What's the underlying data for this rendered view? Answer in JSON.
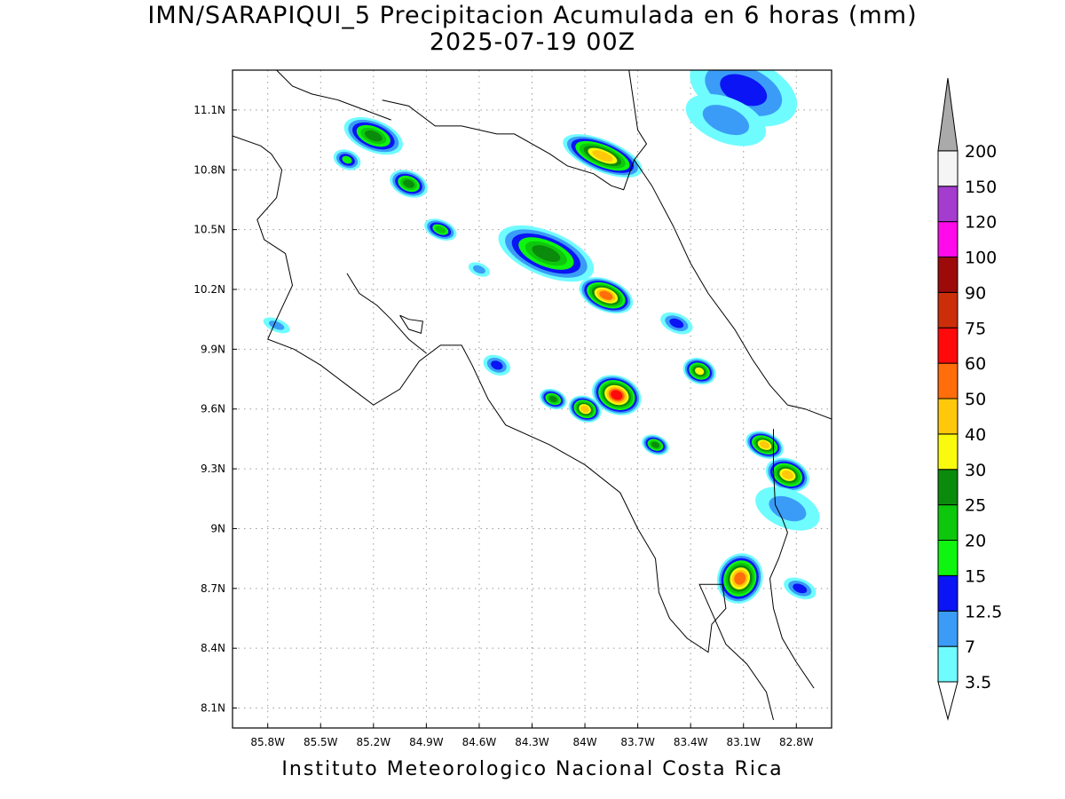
{
  "title": {
    "line1": "IMN/SARAPIQUI_5 Precipitacion Acumulada en 6 horas (mm)",
    "line2": "2025-07-19 00Z"
  },
  "footer": "Instituto Meteorologico Nacional Costa Rica",
  "map": {
    "lon_range": [
      -86.0,
      -82.6
    ],
    "lat_range": [
      8.0,
      11.3
    ],
    "x_ticks": [
      {
        "lon": -85.8,
        "label": "85.8W"
      },
      {
        "lon": -85.5,
        "label": "85.5W"
      },
      {
        "lon": -85.2,
        "label": "85.2W"
      },
      {
        "lon": -84.9,
        "label": "84.9W"
      },
      {
        "lon": -84.6,
        "label": "84.6W"
      },
      {
        "lon": -84.3,
        "label": "84.3W"
      },
      {
        "lon": -84.0,
        "label": "84W"
      },
      {
        "lon": -83.7,
        "label": "83.7W"
      },
      {
        "lon": -83.4,
        "label": "83.4W"
      },
      {
        "lon": -83.1,
        "label": "83.1W"
      },
      {
        "lon": -82.8,
        "label": "82.8W"
      }
    ],
    "y_ticks": [
      {
        "lat": 11.1,
        "label": "11.1N"
      },
      {
        "lat": 10.8,
        "label": "10.8N"
      },
      {
        "lat": 10.5,
        "label": "10.5N"
      },
      {
        "lat": 10.2,
        "label": "10.2N"
      },
      {
        "lat": 9.9,
        "label": "9.9N"
      },
      {
        "lat": 9.6,
        "label": "9.6N"
      },
      {
        "lat": 9.3,
        "label": "9.3N"
      },
      {
        "lat": 9.0,
        "label": "9N"
      },
      {
        "lat": 8.7,
        "label": "8.7N"
      },
      {
        "lat": 8.4,
        "label": "8.4N"
      },
      {
        "lat": 8.1,
        "label": "8.1N"
      }
    ],
    "grid": true,
    "coast": [
      [
        -86.0,
        10.97
      ],
      [
        -85.84,
        10.92
      ],
      [
        -85.78,
        10.88
      ],
      [
        -85.72,
        10.8
      ],
      [
        -85.75,
        10.66
      ],
      [
        -85.86,
        10.55
      ],
      [
        -85.82,
        10.45
      ],
      [
        -85.7,
        10.38
      ],
      [
        -85.66,
        10.22
      ],
      [
        -85.75,
        10.05
      ],
      [
        -85.8,
        9.95
      ],
      [
        -85.65,
        9.9
      ],
      [
        -85.5,
        9.82
      ],
      [
        -85.35,
        9.72
      ],
      [
        -85.2,
        9.62
      ],
      [
        -85.05,
        9.7
      ],
      [
        -84.94,
        9.84
      ],
      [
        -84.82,
        9.92
      ],
      [
        -84.7,
        9.92
      ],
      [
        -84.64,
        9.82
      ],
      [
        -84.55,
        9.65
      ],
      [
        -84.45,
        9.52
      ],
      [
        -84.2,
        9.42
      ],
      [
        -84.0,
        9.32
      ],
      [
        -83.8,
        9.18
      ],
      [
        -83.7,
        9.0
      ],
      [
        -83.6,
        8.85
      ],
      [
        -83.58,
        8.68
      ],
      [
        -83.52,
        8.55
      ],
      [
        -83.42,
        8.45
      ],
      [
        -83.3,
        8.38
      ],
      [
        -83.28,
        8.52
      ],
      [
        -83.2,
        8.6
      ],
      [
        -83.22,
        8.72
      ],
      [
        -83.35,
        8.72
      ],
      [
        -83.2,
        8.42
      ],
      [
        -83.08,
        8.32
      ],
      [
        -82.97,
        8.18
      ],
      [
        -82.93,
        8.04
      ]
    ],
    "coast_north": [
      [
        -85.15,
        11.15
      ],
      [
        -85.0,
        11.12
      ],
      [
        -84.85,
        11.02
      ],
      [
        -84.7,
        11.02
      ],
      [
        -84.5,
        10.98
      ],
      [
        -84.4,
        10.98
      ],
      [
        -84.2,
        10.88
      ],
      [
        -84.1,
        10.82
      ],
      [
        -83.95,
        10.78
      ],
      [
        -83.85,
        10.72
      ],
      [
        -83.78,
        10.7
      ],
      [
        -83.72,
        10.85
      ],
      [
        -83.65,
        10.93
      ],
      [
        -83.7,
        11.0
      ],
      [
        -83.75,
        11.3
      ]
    ],
    "caribbean_coast": [
      [
        -83.72,
        10.85
      ],
      [
        -83.62,
        10.72
      ],
      [
        -83.5,
        10.52
      ],
      [
        -83.4,
        10.33
      ],
      [
        -83.3,
        10.18
      ],
      [
        -83.15,
        10.0
      ],
      [
        -83.05,
        9.85
      ],
      [
        -82.95,
        9.72
      ],
      [
        -82.85,
        9.62
      ],
      [
        -82.75,
        9.6
      ],
      [
        -82.6,
        9.55
      ]
    ],
    "panama_border": [
      [
        -82.93,
        9.5
      ],
      [
        -82.93,
        9.3
      ],
      [
        -82.92,
        9.12
      ],
      [
        -82.88,
        9.05
      ],
      [
        -82.85,
        8.98
      ],
      [
        -82.9,
        8.85
      ],
      [
        -82.95,
        8.75
      ],
      [
        -82.93,
        8.6
      ],
      [
        -82.88,
        8.45
      ],
      [
        -82.8,
        8.33
      ],
      [
        -82.7,
        8.2
      ]
    ],
    "nicaragua_border": [
      [
        -85.75,
        11.3
      ],
      [
        -85.66,
        11.22
      ],
      [
        -85.55,
        11.18
      ],
      [
        -85.4,
        11.15
      ],
      [
        -85.25,
        11.1
      ],
      [
        -85.1,
        11.05
      ]
    ],
    "nicoya_inner": [
      [
        -85.05,
        10.07
      ],
      [
        -85.0,
        10.0
      ],
      [
        -84.93,
        9.98
      ],
      [
        -84.92,
        10.04
      ],
      [
        -85.0,
        10.05
      ],
      [
        -85.05,
        10.07
      ]
    ],
    "gulf_shore": [
      [
        -85.35,
        10.28
      ],
      [
        -85.28,
        10.18
      ],
      [
        -85.18,
        10.12
      ],
      [
        -85.1,
        10.05
      ],
      [
        -85.0,
        9.95
      ],
      [
        -84.9,
        9.88
      ]
    ]
  },
  "precip_cells": [
    {
      "lon": -85.2,
      "lat": 10.97,
      "rx": 0.11,
      "ry": 0.05,
      "level": 25
    },
    {
      "lon": -85.0,
      "lat": 10.73,
      "rx": 0.07,
      "ry": 0.04,
      "level": 25
    },
    {
      "lon": -84.82,
      "lat": 10.5,
      "rx": 0.06,
      "ry": 0.03,
      "level": 20
    },
    {
      "lon": -84.22,
      "lat": 10.38,
      "rx": 0.18,
      "ry": 0.07,
      "level": 25
    },
    {
      "lon": -83.88,
      "lat": 10.17,
      "rx": 0.1,
      "ry": 0.05,
      "level": 50
    },
    {
      "lon": -83.9,
      "lat": 10.87,
      "rx": 0.15,
      "ry": 0.05,
      "level": 40
    },
    {
      "lon": -83.82,
      "lat": 9.67,
      "rx": 0.09,
      "ry": 0.06,
      "level": 60
    },
    {
      "lon": -84.0,
      "lat": 9.6,
      "rx": 0.06,
      "ry": 0.04,
      "level": 40
    },
    {
      "lon": -84.18,
      "lat": 9.65,
      "rx": 0.05,
      "ry": 0.03,
      "level": 25
    },
    {
      "lon": -83.6,
      "lat": 9.42,
      "rx": 0.05,
      "ry": 0.03,
      "level": 25
    },
    {
      "lon": -83.35,
      "lat": 9.79,
      "rx": 0.06,
      "ry": 0.04,
      "level": 30
    },
    {
      "lon": -82.98,
      "lat": 9.42,
      "rx": 0.07,
      "ry": 0.04,
      "level": 40
    },
    {
      "lon": -82.85,
      "lat": 9.27,
      "rx": 0.08,
      "ry": 0.05,
      "level": 40
    },
    {
      "lon": -83.12,
      "lat": 8.75,
      "rx": 0.08,
      "ry": 0.08,
      "level": 50
    },
    {
      "lon": -82.78,
      "lat": 8.7,
      "rx": 0.06,
      "ry": 0.03,
      "level": 12.5
    },
    {
      "lon": -83.48,
      "lat": 10.03,
      "rx": 0.06,
      "ry": 0.03,
      "level": 12.5
    },
    {
      "lon": -84.5,
      "lat": 9.82,
      "rx": 0.05,
      "ry": 0.03,
      "level": 12.5
    },
    {
      "lon": -84.6,
      "lat": 10.3,
      "rx": 0.04,
      "ry": 0.02,
      "level": 7
    },
    {
      "lon": -85.75,
      "lat": 10.02,
      "rx": 0.05,
      "ry": 0.02,
      "level": 7
    },
    {
      "lon": -83.1,
      "lat": 11.2,
      "rx": 0.2,
      "ry": 0.1,
      "level": 12.5
    },
    {
      "lon": -83.2,
      "lat": 11.05,
      "rx": 0.15,
      "ry": 0.07,
      "level": 7
    },
    {
      "lon": -85.35,
      "lat": 10.85,
      "rx": 0.05,
      "ry": 0.03,
      "level": 15
    },
    {
      "lon": -82.85,
      "lat": 9.1,
      "rx": 0.12,
      "ry": 0.06,
      "level": 7
    }
  ],
  "colorbar": {
    "levels": [
      "3.5",
      "7",
      "12.5",
      "15",
      "20",
      "25",
      "30",
      "40",
      "50",
      "60",
      "75",
      "90",
      "100",
      "120",
      "150",
      "200"
    ],
    "colors": [
      "#6ffcff",
      "#3a9cf7",
      "#0a14f4",
      "#0ff50f",
      "#0dc70d",
      "#0b8b0b",
      "#fafa0f",
      "#ffc80a",
      "#ff6e0a",
      "#ff0a0a",
      "#cc2e0a",
      "#9c0a0a",
      "#ff0aea",
      "#a33ccf",
      "#f5f5f5",
      "#aaaaaa"
    ],
    "shade_thresholds": [
      3.5,
      7,
      12.5,
      15,
      20,
      25,
      30,
      40,
      50,
      60,
      75,
      90,
      100,
      120,
      150,
      200
    ]
  }
}
